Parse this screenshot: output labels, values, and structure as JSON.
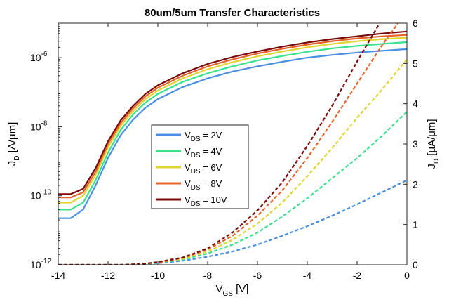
{
  "chart_data": {
    "type": "line",
    "title": "80um/5um Transfer Characteristics",
    "xlabel": {
      "main": "V",
      "sub": "GS",
      "unit": " [V]"
    },
    "ylabel_left": {
      "main": "J",
      "sub": "D",
      "unit": " [A/μm]"
    },
    "ylabel_right": {
      "main": "J",
      "sub": "D",
      "unit": " [μA/μm]"
    },
    "xlim": [
      -14,
      0
    ],
    "ylim_left_log": [
      -12,
      -5
    ],
    "ylim_right": [
      0,
      6
    ],
    "x_ticks": [
      -14,
      -12,
      -10,
      -8,
      -6,
      -4,
      -2,
      0
    ],
    "y_left_ticks": [
      {
        "base": "10",
        "exp": "-12",
        "v": -12
      },
      {
        "base": "10",
        "exp": "-10",
        "v": -10
      },
      {
        "base": "10",
        "exp": "-8",
        "v": -8
      },
      {
        "base": "10",
        "exp": "-6",
        "v": -6
      }
    ],
    "y_right_ticks": [
      0,
      1,
      2,
      3,
      4,
      5,
      6
    ],
    "legend_position": "center-left",
    "legend": [
      {
        "base": "V",
        "sub": "DS",
        "rest": " = 2V",
        "color": "#4a90e2"
      },
      {
        "base": "V",
        "sub": "DS",
        "rest": " = 4V",
        "color": "#3be28c"
      },
      {
        "base": "V",
        "sub": "DS",
        "rest": " = 6V",
        "color": "#e0d531"
      },
      {
        "base": "V",
        "sub": "DS",
        "rest": " = 8V",
        "color": "#e5622a"
      },
      {
        "base": "V",
        "sub": "DS",
        "rest": " = 10V",
        "color": "#7a0a0a"
      }
    ],
    "x": [
      -14,
      -13.5,
      -13,
      -12.5,
      -12,
      -11.5,
      -11,
      -10.5,
      -10,
      -9,
      -8,
      -7,
      -6,
      -5,
      -4,
      -3,
      -2,
      -1,
      0
    ],
    "series_log": [
      {
        "name": "VDS = 2V",
        "values": [
          -10.65,
          -10.65,
          -10.4,
          -9.7,
          -8.9,
          -8.25,
          -7.8,
          -7.45,
          -7.2,
          -6.85,
          -6.6,
          -6.4,
          -6.25,
          -6.12,
          -6.0,
          -5.92,
          -5.85,
          -5.8,
          -5.75
        ]
      },
      {
        "name": "VDS = 4V",
        "values": [
          -10.4,
          -10.4,
          -10.2,
          -9.55,
          -8.75,
          -8.1,
          -7.65,
          -7.3,
          -7.05,
          -6.7,
          -6.45,
          -6.25,
          -6.08,
          -5.95,
          -5.83,
          -5.73,
          -5.66,
          -5.6,
          -5.55
        ]
      },
      {
        "name": "VDS = 6V",
        "values": [
          -10.2,
          -10.2,
          -10.0,
          -9.4,
          -8.6,
          -7.98,
          -7.55,
          -7.2,
          -6.95,
          -6.6,
          -6.33,
          -6.13,
          -5.96,
          -5.82,
          -5.7,
          -5.6,
          -5.52,
          -5.46,
          -5.42
        ]
      },
      {
        "name": "VDS = 8V",
        "values": [
          -10.05,
          -10.05,
          -9.9,
          -9.3,
          -8.5,
          -7.9,
          -7.47,
          -7.12,
          -6.87,
          -6.52,
          -6.25,
          -6.05,
          -5.88,
          -5.74,
          -5.62,
          -5.52,
          -5.44,
          -5.38,
          -5.34
        ]
      },
      {
        "name": "VDS = 10V",
        "values": [
          -9.95,
          -9.95,
          -9.8,
          -9.2,
          -8.42,
          -7.82,
          -7.4,
          -7.05,
          -6.8,
          -6.45,
          -6.18,
          -5.98,
          -5.82,
          -5.68,
          -5.56,
          -5.46,
          -5.38,
          -5.3,
          -5.24
        ]
      }
    ],
    "series_linear": [
      {
        "name": "VDS = 2V",
        "values": [
          0,
          0,
          0,
          0,
          0,
          0,
          0.01,
          0.02,
          0.04,
          0.1,
          0.2,
          0.33,
          0.5,
          0.72,
          0.96,
          1.22,
          1.5,
          1.8,
          2.1
        ]
      },
      {
        "name": "VDS = 4V",
        "values": [
          0,
          0,
          0,
          0,
          0,
          0,
          0.01,
          0.02,
          0.05,
          0.13,
          0.28,
          0.5,
          0.8,
          1.2,
          1.65,
          2.15,
          2.65,
          3.2,
          3.8
        ]
      },
      {
        "name": "VDS = 6V",
        "values": [
          0,
          0,
          0,
          0,
          0,
          0,
          0.01,
          0.03,
          0.06,
          0.15,
          0.33,
          0.62,
          1.02,
          1.55,
          2.2,
          2.9,
          3.65,
          4.35,
          5.1
        ]
      },
      {
        "name": "VDS = 8V",
        "values": [
          0,
          0,
          0,
          0,
          0,
          0,
          0.01,
          0.03,
          0.06,
          0.17,
          0.38,
          0.72,
          1.22,
          1.85,
          2.65,
          3.55,
          4.5,
          5.45,
          6.3
        ]
      },
      {
        "name": "VDS = 10V",
        "values": [
          0,
          0,
          0,
          0,
          0,
          0,
          0.01,
          0.03,
          0.07,
          0.18,
          0.41,
          0.8,
          1.35,
          2.05,
          2.95,
          3.95,
          5.05,
          6.1,
          7.0
        ]
      }
    ]
  }
}
